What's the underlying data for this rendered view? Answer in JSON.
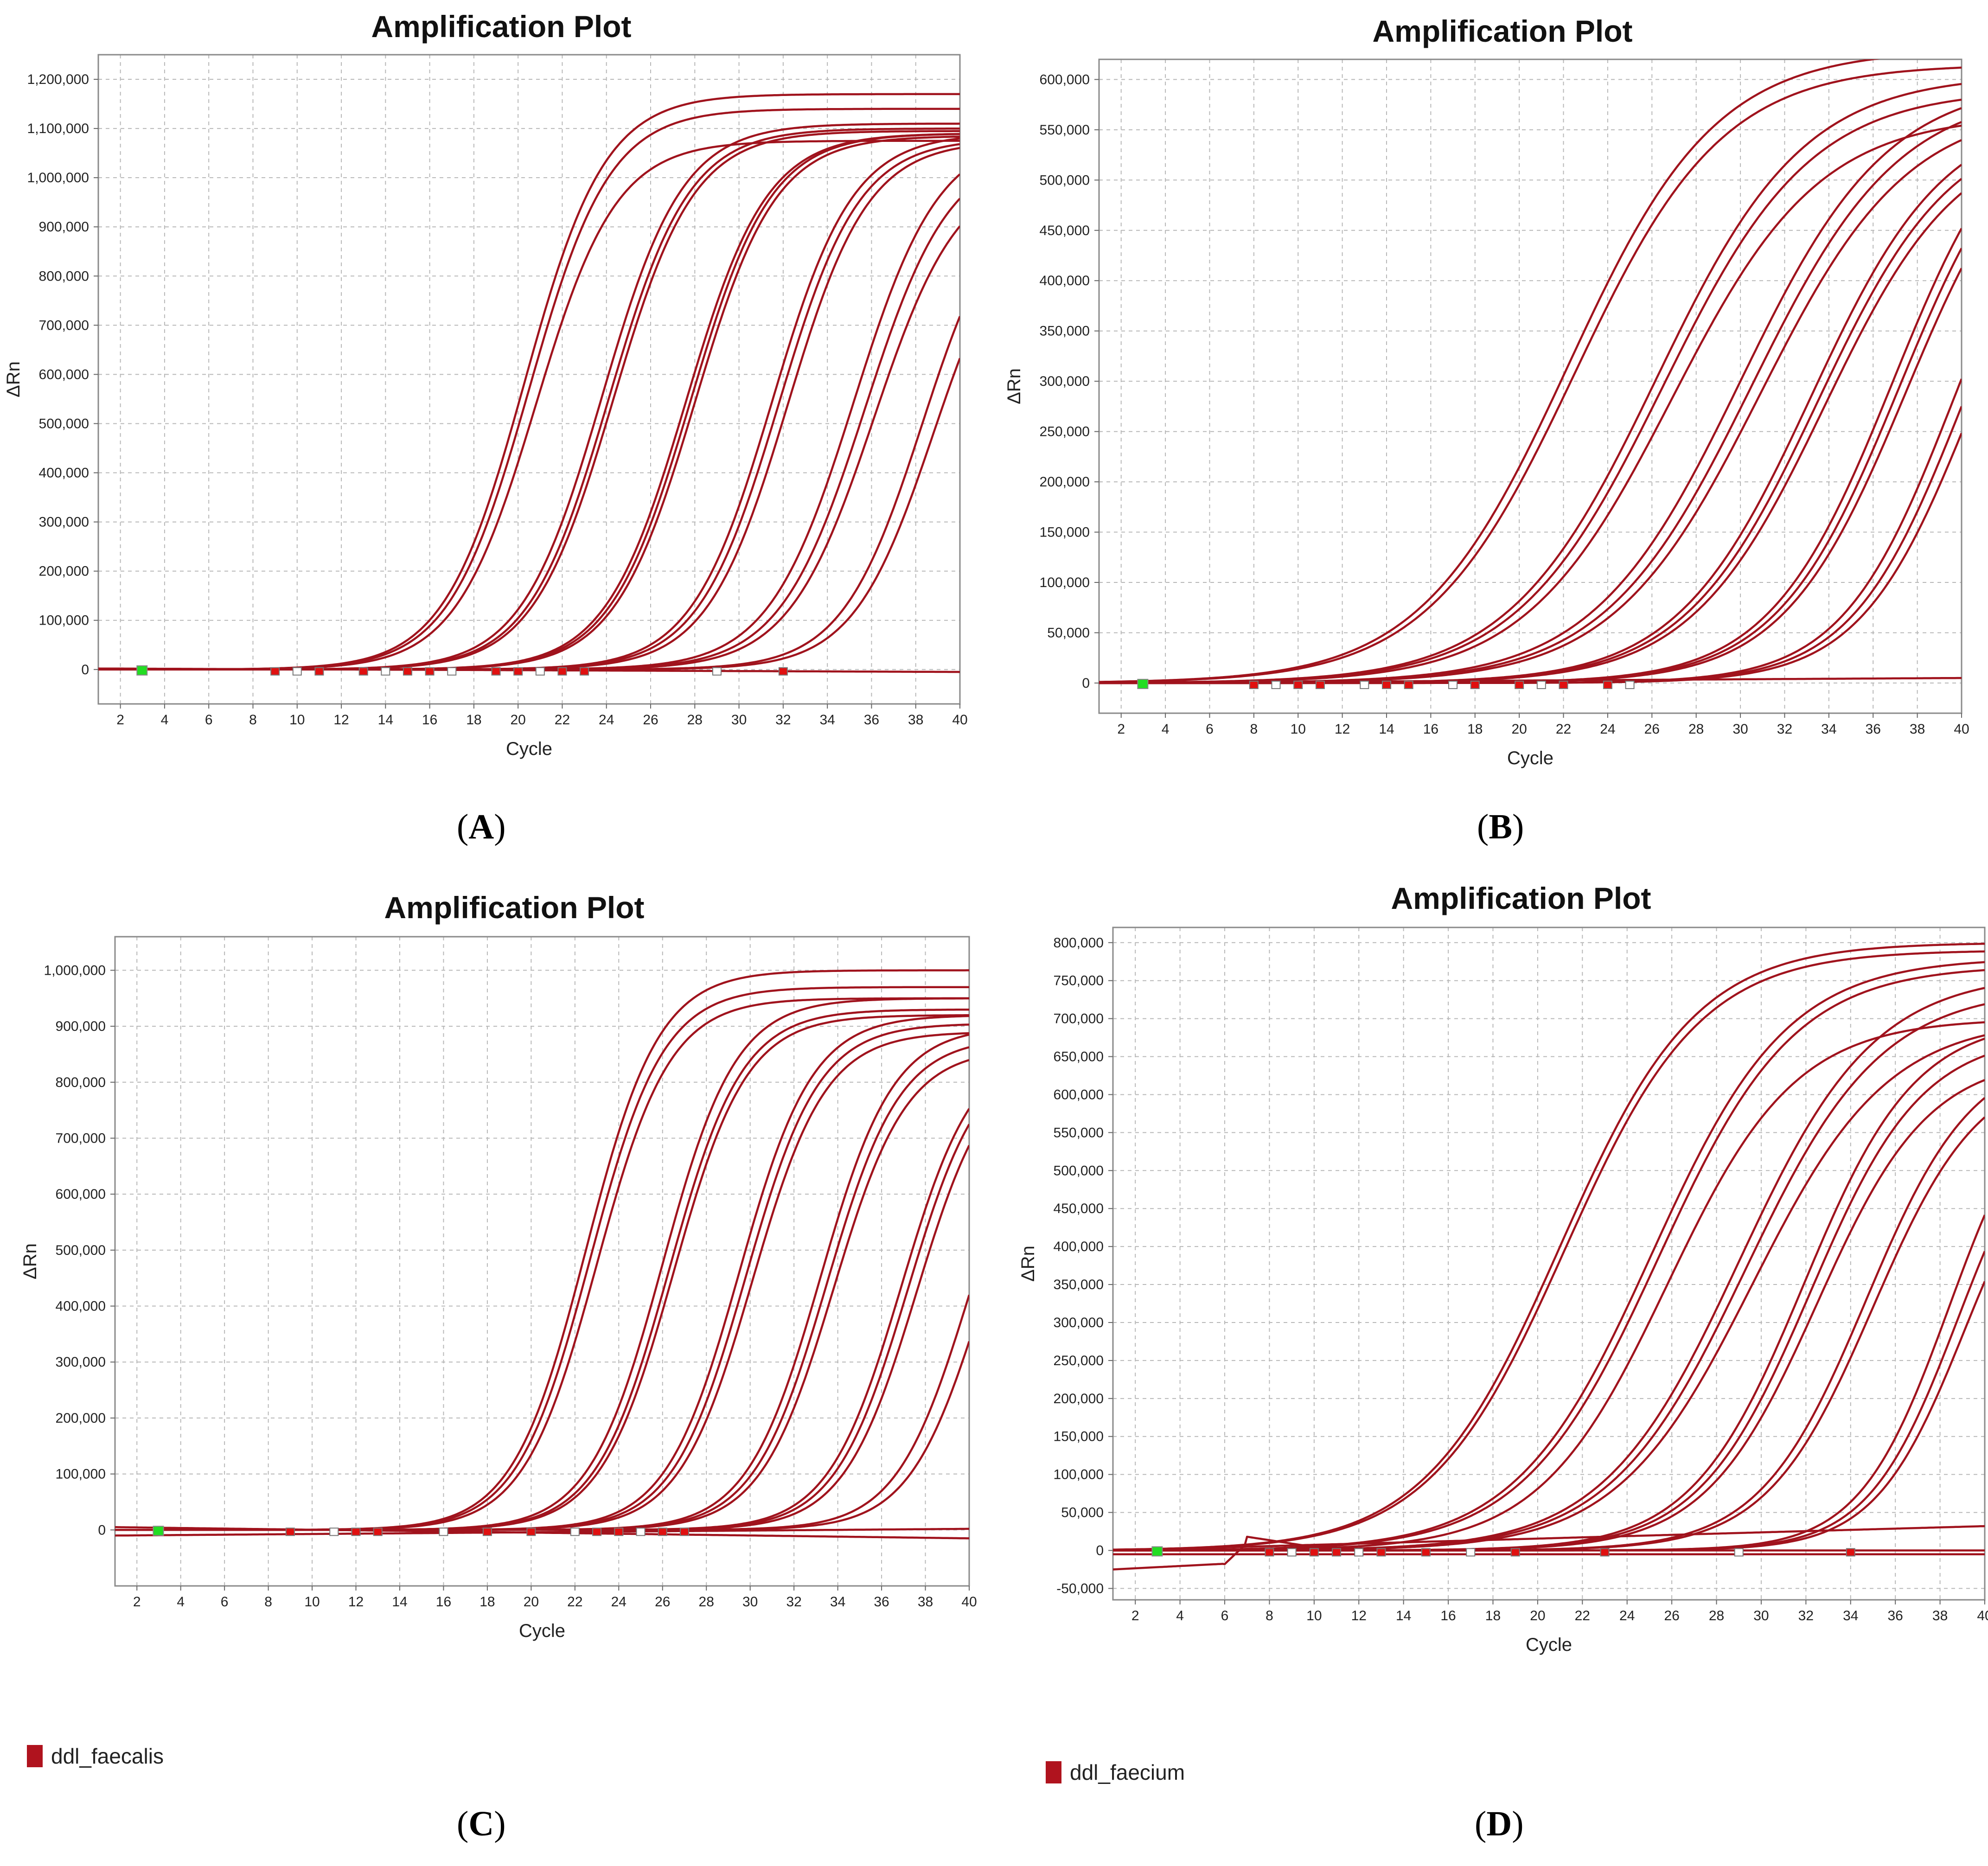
{
  "panels": [
    {
      "id": "A",
      "caption_letter": "A",
      "chart_data": {
        "type": "line",
        "title": "Amplification Plot",
        "xlabel": "Cycle",
        "ylabel": "ΔRn",
        "xlim": [
          1,
          40
        ],
        "ylim": [
          -70000,
          1250000
        ],
        "x_ticks": [
          2,
          4,
          6,
          8,
          10,
          12,
          14,
          16,
          18,
          20,
          22,
          24,
          26,
          28,
          30,
          32,
          34,
          36,
          38,
          40
        ],
        "y_ticks": [
          0,
          100000,
          200000,
          300000,
          400000,
          500000,
          600000,
          700000,
          800000,
          900000,
          1000000,
          1100000,
          1200000
        ],
        "y_tick_labels": [
          "0",
          "100,000",
          "200,000",
          "300,000",
          "400,000",
          "500,000",
          "600,000",
          "700,000",
          "800,000",
          "900,000",
          "1,000,000",
          "1,100,000",
          "1,200,000"
        ],
        "series": [
          {
            "ct": 20.3,
            "plateau": 1170000,
            "slope": 0.55
          },
          {
            "ct": 20.5,
            "plateau": 1140000,
            "slope": 0.55
          },
          {
            "ct": 20.8,
            "plateau": 1075000,
            "slope": 0.55
          },
          {
            "ct": 23.8,
            "plateau": 1110000,
            "slope": 0.55
          },
          {
            "ct": 24.1,
            "plateau": 1100000,
            "slope": 0.55
          },
          {
            "ct": 24.3,
            "plateau": 1095000,
            "slope": 0.55
          },
          {
            "ct": 27.6,
            "plateau": 1090000,
            "slope": 0.55
          },
          {
            "ct": 27.8,
            "plateau": 1090000,
            "slope": 0.55
          },
          {
            "ct": 28.0,
            "plateau": 1085000,
            "slope": 0.55
          },
          {
            "ct": 31.5,
            "plateau": 1090000,
            "slope": 0.55
          },
          {
            "ct": 31.8,
            "plateau": 1080000,
            "slope": 0.55
          },
          {
            "ct": 32.2,
            "plateau": 1075000,
            "slope": 0.55
          },
          {
            "ct": 35.2,
            "plateau": 1090000,
            "slope": 0.52
          },
          {
            "ct": 35.7,
            "plateau": 1060000,
            "slope": 0.52
          },
          {
            "ct": 36.1,
            "plateau": 1020000,
            "slope": 0.52
          },
          {
            "ct": 38.3,
            "plateau": 1000000,
            "slope": 0.55
          },
          {
            "ct": 38.8,
            "plateau": 960000,
            "slope": 0.55
          },
          {
            "flat": true,
            "start": 2000,
            "end": -5000
          }
        ],
        "ct_markers": [
          9,
          10,
          11,
          13,
          14,
          15,
          16,
          17,
          19,
          20,
          21,
          22,
          23,
          29,
          32
        ],
        "baseline_marker": 3
      }
    },
    {
      "id": "B",
      "caption_letter": "B",
      "chart_data": {
        "type": "line",
        "title": "Amplification Plot",
        "xlabel": "Cycle",
        "ylabel": "ΔRn",
        "xlim": [
          1,
          40
        ],
        "ylim": [
          -30000,
          620000
        ],
        "x_ticks": [
          2,
          4,
          6,
          8,
          10,
          12,
          14,
          16,
          18,
          20,
          22,
          24,
          26,
          28,
          30,
          32,
          34,
          36,
          38,
          40
        ],
        "y_ticks": [
          0,
          50000,
          100000,
          150000,
          200000,
          250000,
          300000,
          350000,
          400000,
          450000,
          500000,
          550000,
          600000
        ],
        "y_tick_labels": [
          "0",
          "50,000",
          "100,000",
          "150,000",
          "200,000",
          "250,000",
          "300,000",
          "350,000",
          "400,000",
          "450,000",
          "500,000",
          "550,000",
          "600,000"
        ],
        "series": [
          {
            "ct": 22.2,
            "plateau": 630000,
            "slope": 0.3
          },
          {
            "ct": 22.5,
            "plateau": 615000,
            "slope": 0.3
          },
          {
            "ct": 26.2,
            "plateau": 605000,
            "slope": 0.3
          },
          {
            "ct": 26.5,
            "plateau": 590000,
            "slope": 0.3
          },
          {
            "ct": 26.9,
            "plateau": 565000,
            "slope": 0.3
          },
          {
            "ct": 30.0,
            "plateau": 600000,
            "slope": 0.3
          },
          {
            "ct": 30.5,
            "plateau": 590000,
            "slope": 0.3
          },
          {
            "ct": 30.9,
            "plateau": 575000,
            "slope": 0.3
          },
          {
            "ct": 33.2,
            "plateau": 570000,
            "slope": 0.33
          },
          {
            "ct": 33.5,
            "plateau": 560000,
            "slope": 0.33
          },
          {
            "ct": 33.8,
            "plateau": 550000,
            "slope": 0.33
          },
          {
            "ct": 36.9,
            "plateau": 600000,
            "slope": 0.36
          },
          {
            "ct": 37.2,
            "plateau": 590000,
            "slope": 0.36
          },
          {
            "ct": 37.5,
            "plateau": 580000,
            "slope": 0.36
          },
          {
            "ct": 39.6,
            "plateau": 560000,
            "slope": 0.4
          },
          {
            "ct": 40.0,
            "plateau": 550000,
            "slope": 0.4
          },
          {
            "ct": 40.4,
            "plateau": 540000,
            "slope": 0.4
          },
          {
            "flat": true,
            "start": 0,
            "end": 5000
          }
        ],
        "ct_markers": [
          8,
          9,
          10,
          11,
          13,
          14,
          15,
          17,
          18,
          20,
          21,
          22,
          24,
          25
        ],
        "baseline_marker": 3
      }
    },
    {
      "id": "C",
      "caption_letter": "C",
      "chart_data": {
        "type": "line",
        "title": "Amplification Plot",
        "xlabel": "Cycle",
        "ylabel": "ΔRn",
        "xlim": [
          1,
          40
        ],
        "ylim": [
          -100000,
          1060000
        ],
        "x_ticks": [
          2,
          4,
          6,
          8,
          10,
          12,
          14,
          16,
          18,
          20,
          22,
          24,
          26,
          28,
          30,
          32,
          34,
          36,
          38,
          40
        ],
        "y_ticks": [
          0,
          100000,
          200000,
          300000,
          400000,
          500000,
          600000,
          700000,
          800000,
          900000,
          1000000
        ],
        "y_tick_labels": [
          "0",
          "100,000",
          "200,000",
          "300,000",
          "400,000",
          "500,000",
          "600,000",
          "700,000",
          "800,000",
          "900,000",
          "1,000,000"
        ],
        "series": [
          {
            "ct": 22.5,
            "plateau": 1000000,
            "slope": 0.6
          },
          {
            "ct": 22.7,
            "plateau": 970000,
            "slope": 0.6
          },
          {
            "ct": 23.0,
            "plateau": 950000,
            "slope": 0.6
          },
          {
            "ct": 26.0,
            "plateau": 950000,
            "slope": 0.6
          },
          {
            "ct": 26.3,
            "plateau": 930000,
            "slope": 0.6
          },
          {
            "ct": 26.5,
            "plateau": 920000,
            "slope": 0.6
          },
          {
            "ct": 29.5,
            "plateau": 920000,
            "slope": 0.6
          },
          {
            "ct": 29.8,
            "plateau": 905000,
            "slope": 0.6
          },
          {
            "ct": 30.1,
            "plateau": 890000,
            "slope": 0.6
          },
          {
            "ct": 33.2,
            "plateau": 900000,
            "slope": 0.6
          },
          {
            "ct": 33.5,
            "plateau": 880000,
            "slope": 0.6
          },
          {
            "ct": 33.8,
            "plateau": 860000,
            "slope": 0.6
          },
          {
            "ct": 36.9,
            "plateau": 870000,
            "slope": 0.6
          },
          {
            "ct": 37.2,
            "plateau": 860000,
            "slope": 0.6
          },
          {
            "ct": 37.6,
            "plateau": 850000,
            "slope": 0.6
          },
          {
            "ct": 40.0,
            "plateau": 840000,
            "slope": 0.6
          },
          {
            "ct": 40.6,
            "plateau": 820000,
            "slope": 0.6
          },
          {
            "flat": true,
            "start": 5000,
            "end": -15000
          },
          {
            "flat": true,
            "start": -10000,
            "end": 2000
          }
        ],
        "ct_markers": [
          9,
          11,
          12,
          13,
          16,
          18,
          20,
          22,
          23,
          24,
          25,
          26,
          27
        ],
        "baseline_marker": 3
      },
      "legend_label": "ddl_faecalis"
    },
    {
      "id": "D",
      "caption_letter": "D",
      "chart_data": {
        "type": "line",
        "title": "Amplification Plot",
        "xlabel": "Cycle",
        "ylabel": "ΔRn",
        "xlim": [
          1,
          40
        ],
        "ylim": [
          -65000,
          820000
        ],
        "x_ticks": [
          2,
          4,
          6,
          8,
          10,
          12,
          14,
          16,
          18,
          20,
          22,
          24,
          26,
          28,
          30,
          32,
          34,
          36,
          38,
          40
        ],
        "y_ticks": [
          -50000,
          0,
          50000,
          100000,
          150000,
          200000,
          250000,
          300000,
          350000,
          400000,
          450000,
          500000,
          550000,
          600000,
          650000,
          700000,
          750000,
          800000
        ],
        "y_tick_labels": [
          "-50,000",
          "0",
          "50,000",
          "100,000",
          "150,000",
          "200,000",
          "250,000",
          "300,000",
          "350,000",
          "400,000",
          "450,000",
          "500,000",
          "550,000",
          "600,000",
          "650,000",
          "700,000",
          "750,000",
          "800,000"
        ],
        "series": [
          {
            "ct": 21.0,
            "plateau": 800000,
            "slope": 0.33
          },
          {
            "ct": 21.2,
            "plateau": 790000,
            "slope": 0.33
          },
          {
            "ct": 25.1,
            "plateau": 780000,
            "slope": 0.33
          },
          {
            "ct": 25.4,
            "plateau": 770000,
            "slope": 0.33
          },
          {
            "ct": 25.8,
            "plateau": 700000,
            "slope": 0.35
          },
          {
            "ct": 29.0,
            "plateau": 760000,
            "slope": 0.33
          },
          {
            "ct": 29.3,
            "plateau": 740000,
            "slope": 0.33
          },
          {
            "ct": 29.6,
            "plateau": 700000,
            "slope": 0.33
          },
          {
            "ct": 31.9,
            "plateau": 700000,
            "slope": 0.4
          },
          {
            "ct": 32.2,
            "plateau": 680000,
            "slope": 0.4
          },
          {
            "ct": 32.5,
            "plateau": 650000,
            "slope": 0.4
          },
          {
            "ct": 34.7,
            "plateau": 660000,
            "slope": 0.42
          },
          {
            "ct": 35.0,
            "plateau": 640000,
            "slope": 0.42
          },
          {
            "ct": 38.4,
            "plateau": 640000,
            "slope": 0.5
          },
          {
            "ct": 38.8,
            "plateau": 610000,
            "slope": 0.5
          },
          {
            "ct": 39.1,
            "plateau": 580000,
            "slope": 0.5
          },
          {
            "flat": true,
            "start": 0,
            "end": 32000
          },
          {
            "flat": true,
            "start": -5000,
            "end": -5000
          },
          {
            "bump": true
          }
        ],
        "ct_markers": [
          8,
          9,
          10,
          11,
          12,
          13,
          15,
          17,
          19,
          23,
          29,
          34
        ],
        "baseline_marker": 3
      },
      "legend_label": "ddl_faecium"
    }
  ]
}
